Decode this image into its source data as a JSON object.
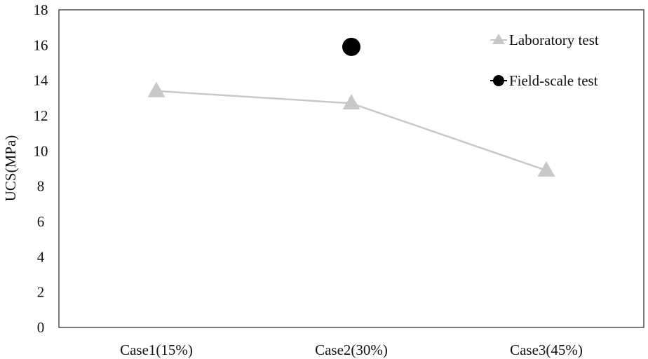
{
  "chart_data": {
    "type": "line",
    "categories": [
      "Case1(15%)",
      "Case2(30%)",
      "Case3(45%)"
    ],
    "series": [
      {
        "name": "Laboratory test",
        "values": [
          13.4,
          12.7,
          8.9
        ],
        "color": "#c8c8c8",
        "marker": "triangle",
        "line": true
      },
      {
        "name": "Field-scale test",
        "values": [
          null,
          15.9,
          null
        ],
        "color": "#000000",
        "marker": "circle",
        "line": false
      }
    ],
    "ylabel": "UCS(MPa)",
    "xlabel": "",
    "ylim": [
      0,
      18
    ],
    "yticks": [
      "0",
      "2",
      "4",
      "6",
      "8",
      "10",
      "12",
      "14",
      "16",
      "18"
    ],
    "grid": false,
    "legend_position": "top-right"
  }
}
